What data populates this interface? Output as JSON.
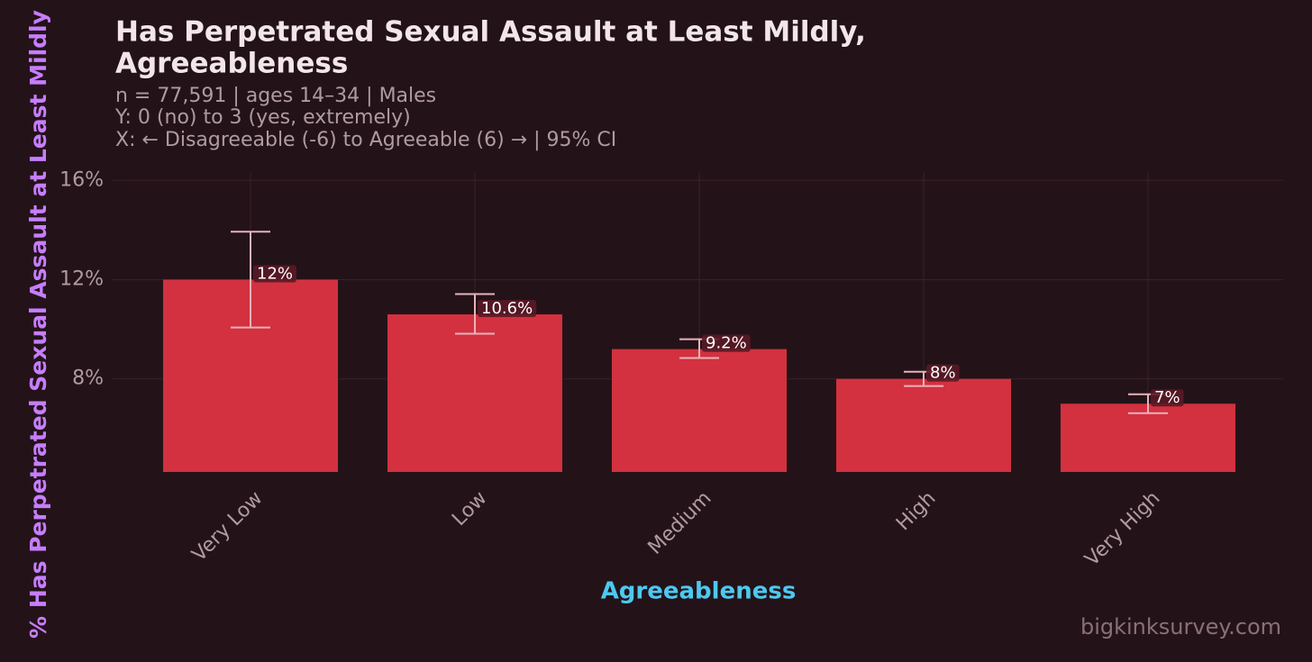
{
  "chart_data": {
    "type": "bar",
    "title": [
      "Has Perpetrated Sexual Assault at Least Mildly,",
      "Agreeableness"
    ],
    "subtitle": [
      "n = 77,591  |  ages 14–34  |  Males",
      "Y: 0 (no) to 3 (yes, extremely)",
      "X: ← Disagreeable (-6) to Agreeable (6) →  |  95% CI"
    ],
    "x_label": "Agreeableness",
    "y_label": "% Has Perpetrated Sexual Assault at Least Mildly",
    "watermark": "bigkinksurvey.com",
    "categories": [
      "Very Low",
      "Low",
      "Medium",
      "High",
      "Very High"
    ],
    "values": [
      12,
      10.6,
      9.2,
      8,
      7
    ],
    "value_labels": [
      "12%",
      "10.6%",
      "9.2%",
      "8%",
      "7%"
    ],
    "ci_lower": [
      10.07,
      9.82,
      8.84,
      7.71,
      6.62
    ],
    "ci_upper": [
      13.93,
      11.42,
      9.6,
      8.29,
      7.38
    ],
    "color": "#d3313f",
    "error_color": "#e6b3bb",
    "ylim": [
      4.25,
      16.3
    ],
    "yticks": [
      {
        "value": 8,
        "label": "8%"
      },
      {
        "value": 12,
        "label": "12%"
      },
      {
        "value": 16,
        "label": "16%"
      }
    ],
    "grid": true
  }
}
